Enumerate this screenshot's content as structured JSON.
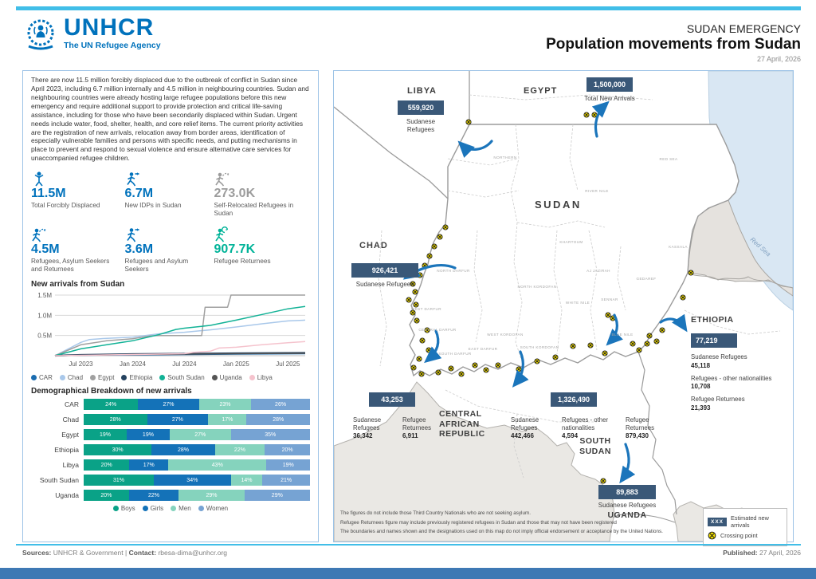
{
  "colors": {
    "unhcr_blue": "#0072BC",
    "accent_cyan": "#41BEE8",
    "bottom_bar_blue": "#3E79B4",
    "callout_navy": "#3A5878",
    "figure_gray": "#9C9C9C",
    "figure_green": "#00B398",
    "crossing_yellow": "#F6E200",
    "arrow_blue": "#1B75BB"
  },
  "header": {
    "logo_org": "UNHCR",
    "logo_tagline": "The UN Refugee Agency",
    "kicker": "SUDAN EMERGENCY",
    "title": "Population movements from Sudan",
    "date": "27 April, 2026"
  },
  "intro": "There are now 11.5 million forcibly displaced due to the outbreak of conflict in Sudan since April 2023, including 6.7 million internally and 4.5 million in neighbouring countries. Sudan and neighbouring countries were already hosting large refugee populations before this new emergency and require additional support to provide protection and critical life-saving assistance, including for those who have been secondarily displaced within Sudan. Urgent needs include water, food, shelter, health, and core relief items. The current priority activities are the registration of new arrivals, relocation away from border areas, identification of especially vulnerable families and persons with specific needs, and putting mechanisms in place to prevent and respond to sexual violence and ensure alternative care services for unaccompanied refugee children.",
  "key_figures": [
    {
      "value": "11.5M",
      "label": "Total Forcibly Displaced",
      "color": "#0072BC",
      "icon": "person"
    },
    {
      "value": "6.7M",
      "label": "New IDPs in Sudan",
      "color": "#0072BC",
      "icon": "runner-arrow"
    },
    {
      "value": "273.0K",
      "label": "Self-Relocated Refugees in Sudan",
      "color": "#9C9C9C",
      "icon": "runner-dashed"
    },
    {
      "value": "4.5M",
      "label": "Refugees, Asylum Seekers and Returnees",
      "color": "#0072BC",
      "icon": "runner-dashed"
    },
    {
      "value": "3.6M",
      "label": "Refugees and Asylum Seekers",
      "color": "#0072BC",
      "icon": "runner-arrow"
    },
    {
      "value": "907.7K",
      "label": "Refugee Returnees",
      "color": "#00B398",
      "icon": "runner-return"
    }
  ],
  "chart_data": [
    {
      "type": "line",
      "title": "New arrivals from Sudan",
      "xlabel": "",
      "ylabel": "",
      "x_unit": "months since Apr 2023",
      "x_max": 29,
      "ylim": [
        0,
        1.5
      ],
      "y_ticks": [
        {
          "v": 0.5,
          "label": "0.5M"
        },
        {
          "v": 1.0,
          "label": "1.0M"
        },
        {
          "v": 1.5,
          "label": "1.5M"
        }
      ],
      "x_ticks": [
        {
          "m": 3,
          "label": "Jul 2023"
        },
        {
          "m": 9,
          "label": "Jan 2024"
        },
        {
          "m": 15,
          "label": "Jul 2024"
        },
        {
          "m": 21,
          "label": "Jan 2025"
        },
        {
          "m": 27,
          "label": "Jul 2025"
        }
      ],
      "grid": true,
      "legend_position": "bottom",
      "series": [
        {
          "name": "CAR",
          "color": "#1B6CB0",
          "points": [
            [
              0,
              0
            ],
            [
              3,
              0.01
            ],
            [
              9,
              0.02
            ],
            [
              15,
              0.03
            ],
            [
              21,
              0.04
            ],
            [
              29,
              0.05
            ]
          ]
        },
        {
          "name": "Chad",
          "color": "#A9C8EA",
          "points": [
            [
              0,
              0
            ],
            [
              2,
              0.22
            ],
            [
              3,
              0.33
            ],
            [
              4,
              0.4
            ],
            [
              6,
              0.43
            ],
            [
              9,
              0.46
            ],
            [
              12,
              0.54
            ],
            [
              15,
              0.58
            ],
            [
              18,
              0.64
            ],
            [
              21,
              0.71
            ],
            [
              24,
              0.79
            ],
            [
              27,
              0.86
            ],
            [
              29,
              0.88
            ]
          ]
        },
        {
          "name": "Egypt",
          "color": "#A0A0A0",
          "points": [
            [
              0,
              0
            ],
            [
              3,
              0.27
            ],
            [
              6,
              0.37
            ],
            [
              9,
              0.42
            ],
            [
              11,
              0.49
            ],
            [
              12,
              0.5
            ],
            [
              17,
              0.5
            ],
            [
              17.4,
              1.2
            ],
            [
              20,
              1.2
            ],
            [
              20.4,
              1.5
            ],
            [
              29,
              1.5
            ]
          ]
        },
        {
          "name": "Ethiopia",
          "color": "#24425F",
          "points": [
            [
              0,
              0
            ],
            [
              3,
              0.02
            ],
            [
              9,
              0.04
            ],
            [
              15,
              0.05
            ],
            [
              21,
              0.06
            ],
            [
              29,
              0.07
            ]
          ]
        },
        {
          "name": "South Sudan",
          "color": "#12B296",
          "points": [
            [
              0,
              0
            ],
            [
              3,
              0.17
            ],
            [
              6,
              0.27
            ],
            [
              9,
              0.37
            ],
            [
              12,
              0.52
            ],
            [
              14,
              0.65
            ],
            [
              15,
              0.68
            ],
            [
              18,
              0.75
            ],
            [
              21,
              0.88
            ],
            [
              24,
              1.02
            ],
            [
              27,
              1.16
            ],
            [
              29,
              1.22
            ]
          ]
        },
        {
          "name": "Uganda",
          "color": "#555555",
          "points": [
            [
              0,
              0
            ],
            [
              3,
              0.01
            ],
            [
              9,
              0.03
            ],
            [
              15,
              0.04
            ],
            [
              21,
              0.05
            ],
            [
              29,
              0.06
            ]
          ]
        },
        {
          "name": "Libya",
          "color": "#F5C3CD",
          "points": [
            [
              0,
              0
            ],
            [
              3,
              0.01
            ],
            [
              9,
              0.03
            ],
            [
              15,
              0.05
            ],
            [
              16,
              0.08
            ],
            [
              18,
              0.11
            ],
            [
              19,
              0.19
            ],
            [
              21,
              0.21
            ],
            [
              24,
              0.27
            ],
            [
              27,
              0.32
            ],
            [
              29,
              0.35
            ]
          ]
        }
      ]
    },
    {
      "type": "stacked-bar",
      "title": "Demographical Breakdown of new arrivals",
      "unit": "%",
      "categories": [
        "CAR",
        "Chad",
        "Egypt",
        "Ethiopia",
        "Libya",
        "South Sudan",
        "Uganda"
      ],
      "series": [
        {
          "name": "Boys",
          "color": "#0AA287",
          "values": [
            24,
            28,
            19,
            30,
            20,
            31,
            20
          ]
        },
        {
          "name": "Girls",
          "color": "#1472B8",
          "values": [
            27,
            27,
            19,
            28,
            17,
            34,
            22
          ]
        },
        {
          "name": "Men",
          "color": "#85D3BD",
          "values": [
            23,
            17,
            27,
            22,
            43,
            14,
            29
          ]
        },
        {
          "name": "Women",
          "color": "#76A3D3",
          "values": [
            26,
            28,
            35,
            20,
            19,
            21,
            29
          ]
        }
      ],
      "legend_position": "bottom"
    }
  ],
  "map": {
    "country_labels": [
      {
        "name": "LIBYA"
      },
      {
        "name": "EGYPT"
      },
      {
        "name": "SUDAN"
      },
      {
        "name": "CHAD"
      },
      {
        "name": "ETHIOPIA"
      },
      {
        "name": "CENTRAL AFRICAN REPUBLIC"
      },
      {
        "name": "SOUTH SUDAN"
      },
      {
        "name": "UGANDA"
      }
    ],
    "sea_label": "Red Sea",
    "state_labels": [
      "NORTHERN",
      "RED SEA",
      "RIVER NILE",
      "KASSALA",
      "KHARTOUM",
      "AJ JAZIRAH",
      "GEDAREF",
      "WHITE NILE",
      "SENNAR",
      "BLUE NILE",
      "NORTH KORDOFAN",
      "WEST KORDOFAN",
      "SOUTH KORDOFAN",
      "NORTH DARFUR",
      "WEST DARFUR",
      "CENTRAL DARFUR",
      "SOUTH DARFUR",
      "EAST DARFUR"
    ],
    "callouts": {
      "total": {
        "value": "1,500,000",
        "label": "Total New Arrivals"
      },
      "libya": {
        "value": "559,920",
        "label": "Sudanese Refugees"
      },
      "chad": {
        "value": "926,421",
        "label": "Sudanese Refugees"
      },
      "ethiopia": {
        "value": "77,219",
        "details": [
          {
            "label": "Sudanese Refugees",
            "value": "45,118"
          },
          {
            "label": "Refugees - other nationalities",
            "value": "10,708"
          },
          {
            "label": "Refugee Returnees",
            "value": "21,393"
          }
        ]
      },
      "car": {
        "value": "43,253",
        "details": [
          {
            "label": "Sudanese Refugees",
            "value": "36,342"
          },
          {
            "label": "Refugee Returnees",
            "value": "6,911"
          }
        ]
      },
      "south_sudan": {
        "value": "1,326,490",
        "details": [
          {
            "label": "Sudanese Refugees",
            "value": "442,466"
          },
          {
            "label": "Refugees - other nationalities",
            "value": "4,594"
          },
          {
            "label": "Refugee Returnees",
            "value": "879,430"
          }
        ]
      },
      "uganda": {
        "value": "89,883",
        "label": "Sudanese Refugees"
      }
    },
    "legend": [
      {
        "symbol": "XXX",
        "label": "Estimated new arrivals"
      },
      {
        "symbol": "crossing-point",
        "label": "Crossing point"
      }
    ],
    "disclaimers": [
      "The figures do not include those Third Country Nationals who are not seeking asylum.",
      "Refugee Returnees figure may include previously registered refugees in Sudan and those that may not have been registered",
      "The boundaries and names shown and the designations used on this map do not imply official endorsement or acceptance by the United Nations."
    ]
  },
  "footer": {
    "sources_label": "Sources:",
    "sources": "UNHCR & Government",
    "separator": "|",
    "contact_label": "Contact:",
    "contact": "rbesa-dima@unhcr.org",
    "published_label": "Published:",
    "published": "27 April, 2026"
  }
}
